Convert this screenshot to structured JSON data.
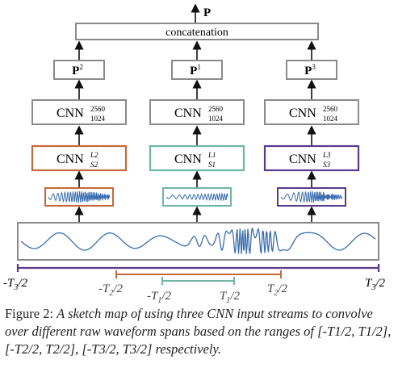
{
  "top": {
    "output_symbol": "P",
    "concat_label": "concatenation"
  },
  "streams": [
    {
      "p_label": "P",
      "p_sup": "2",
      "cnn_label": "CNN",
      "cnn_sup": "2560",
      "cnn_sub": "1024",
      "branch_label": "CNN",
      "branch_sup": "L2",
      "branch_sub": "S2",
      "color": "#c8683a"
    },
    {
      "p_label": "P",
      "p_sup": "1",
      "cnn_label": "CNN",
      "cnn_sup": "2560",
      "cnn_sub": "1024",
      "branch_label": "CNN",
      "branch_sup": "L1",
      "branch_sub": "S1",
      "color": "#6fb5a3"
    },
    {
      "p_label": "P",
      "p_sup": "3",
      "cnn_label": "CNN",
      "cnn_sup": "2560",
      "cnn_sub": "1024",
      "branch_label": "CNN",
      "branch_sup": "L3",
      "branch_sub": "S3",
      "color": "#5a3a8a"
    }
  ],
  "colors": {
    "box_gray": "#8a8a8a",
    "waveform": "#3a6db0",
    "timeline_outer": "#5a3a8a",
    "timeline_mid": "#c8683a",
    "timeline_inner": "#6fb5a3",
    "arrow": "#111111"
  },
  "timeline_labels": {
    "outer_left": "-T3/2",
    "outer_right": "T3/2",
    "mid_left": "-T2/2",
    "mid_right": "T2/2",
    "inner_left": "-T1/2",
    "inner_right": "T1/2"
  },
  "caption": {
    "prefix": "Figure 2:",
    "text": "A sketch map of using three CNN input streams to convolve over different raw waveform spans based on the ranges of [-T1/2, T1/2], [-T2/2, T2/2], [-T3/2, T3/2] respectively."
  }
}
